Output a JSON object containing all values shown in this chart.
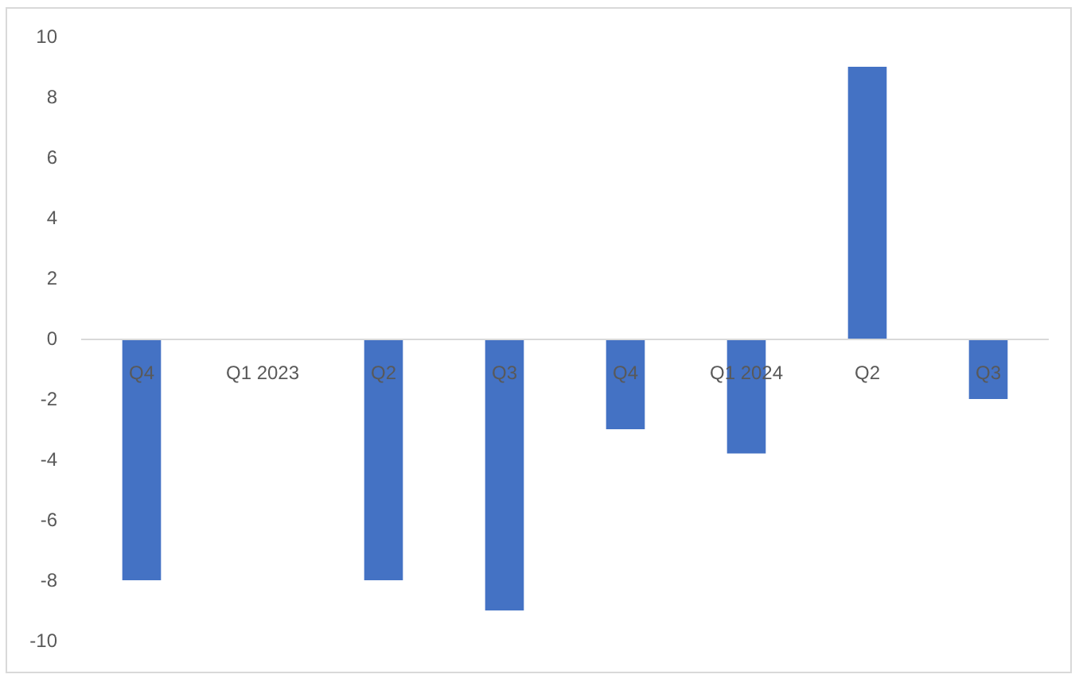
{
  "chart_data": {
    "type": "bar",
    "categories": [
      "Q4",
      "Q1 2023",
      "Q2",
      "Q3",
      "Q4",
      "Q1 2024",
      "Q2",
      "Q3"
    ],
    "values": [
      -8,
      null,
      -8,
      -9,
      -3,
      -3.8,
      9,
      -2
    ],
    "color": "#4472c4",
    "ylim": [
      -10,
      10
    ],
    "yticks": [
      -10,
      -8,
      -6,
      -4,
      -2,
      0,
      2,
      4,
      6,
      8,
      10
    ],
    "grid": false
  }
}
